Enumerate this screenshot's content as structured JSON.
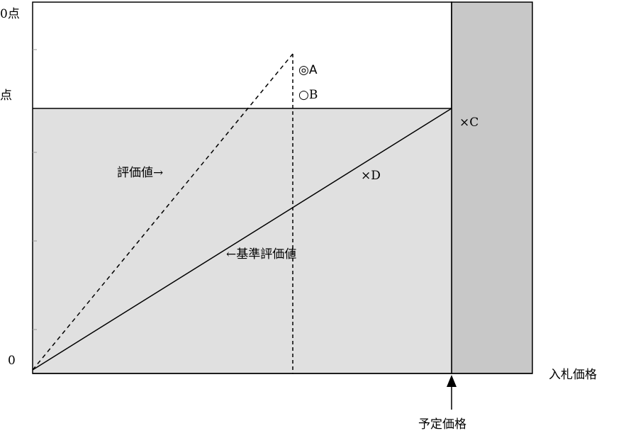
{
  "y_axis": {
    "top_label": "0点",
    "mid_label": "点",
    "origin_label": "0"
  },
  "x_axis": {
    "label": "入札価格",
    "marker_label": "予定価格"
  },
  "lines": {
    "evaluation_label": "評価値→",
    "base_evaluation_label": "←基準評価値"
  },
  "points": {
    "a": "◎A",
    "b": "○B",
    "c": "×C",
    "d": "×D"
  },
  "colors": {
    "shaded_region": "#e0e0e0",
    "excluded_region": "#c8c8c8",
    "line": "#000000"
  }
}
